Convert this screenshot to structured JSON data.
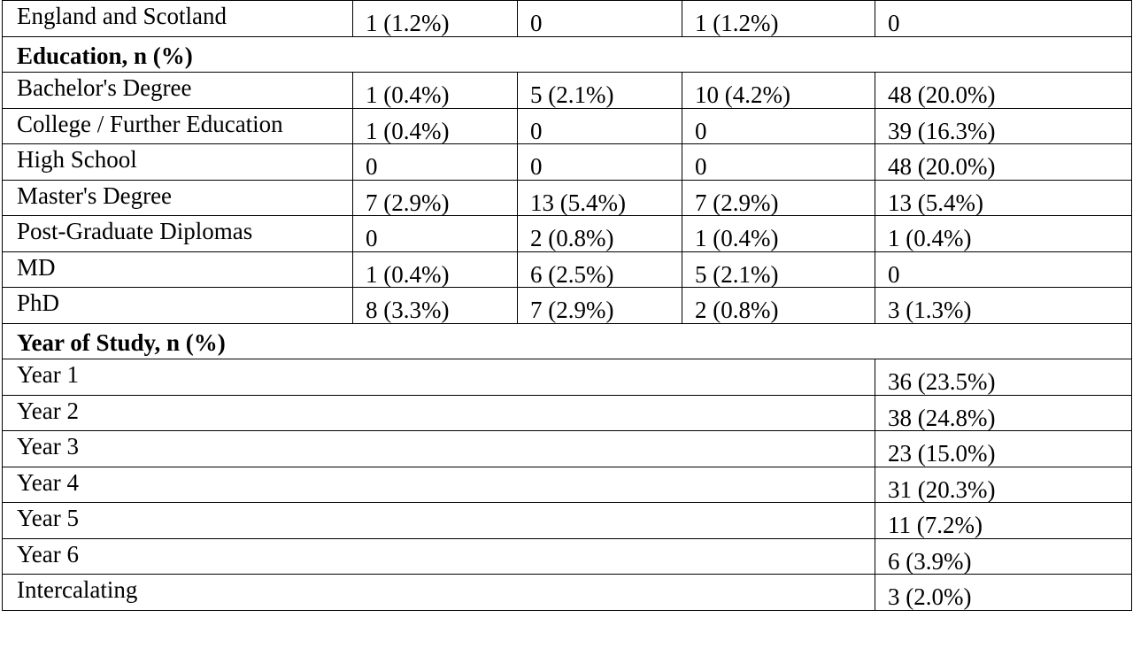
{
  "table": {
    "rows": [
      {
        "type": "data",
        "label": "England and Scotland",
        "values": [
          "1 (1.2%)",
          "0",
          "1 (1.2%)",
          "0"
        ]
      },
      {
        "type": "section",
        "label": "Education, n (%)"
      },
      {
        "type": "data",
        "label": "Bachelor's Degree",
        "values": [
          "1 (0.4%)",
          "5 (2.1%)",
          "10 (4.2%)",
          "48 (20.0%)"
        ]
      },
      {
        "type": "data",
        "label": "College / Further Education",
        "values": [
          "1 (0.4%)",
          "0",
          "0",
          "39 (16.3%)"
        ]
      },
      {
        "type": "data",
        "label": "High School",
        "values": [
          "0",
          "0",
          "0",
          "48 (20.0%)"
        ]
      },
      {
        "type": "data",
        "label": "Master's Degree",
        "values": [
          "7 (2.9%)",
          "13 (5.4%)",
          "7 (2.9%)",
          "13 (5.4%)"
        ]
      },
      {
        "type": "data",
        "label": "Post-Graduate Diplomas",
        "values": [
          "0",
          "2 (0.8%)",
          "1 (0.4%)",
          "1 (0.4%)"
        ]
      },
      {
        "type": "data",
        "label": "MD",
        "values": [
          "1 (0.4%)",
          "6 (2.5%)",
          "5 (2.1%)",
          "0"
        ]
      },
      {
        "type": "data",
        "label": "PhD",
        "values": [
          "8 (3.3%)",
          "7 (2.9%)",
          "2 (0.8%)",
          "3 (1.3%)"
        ]
      },
      {
        "type": "section",
        "label": "Year of Study, n (%)"
      },
      {
        "type": "last",
        "label": "Year 1",
        "value": "36 (23.5%)"
      },
      {
        "type": "last",
        "label": "Year 2",
        "value": "38 (24.8%)"
      },
      {
        "type": "last",
        "label": "Year 3",
        "value": "23 (15.0%)"
      },
      {
        "type": "last",
        "label": "Year 4",
        "value": "31 (20.3%)"
      },
      {
        "type": "last",
        "label": "Year 5",
        "value": "11 (7.2%)"
      },
      {
        "type": "last",
        "label": "Year 6",
        "value": "6 (3.9%)"
      },
      {
        "type": "last",
        "label": "Intercalating",
        "value": "3 (2.0%)"
      }
    ]
  }
}
